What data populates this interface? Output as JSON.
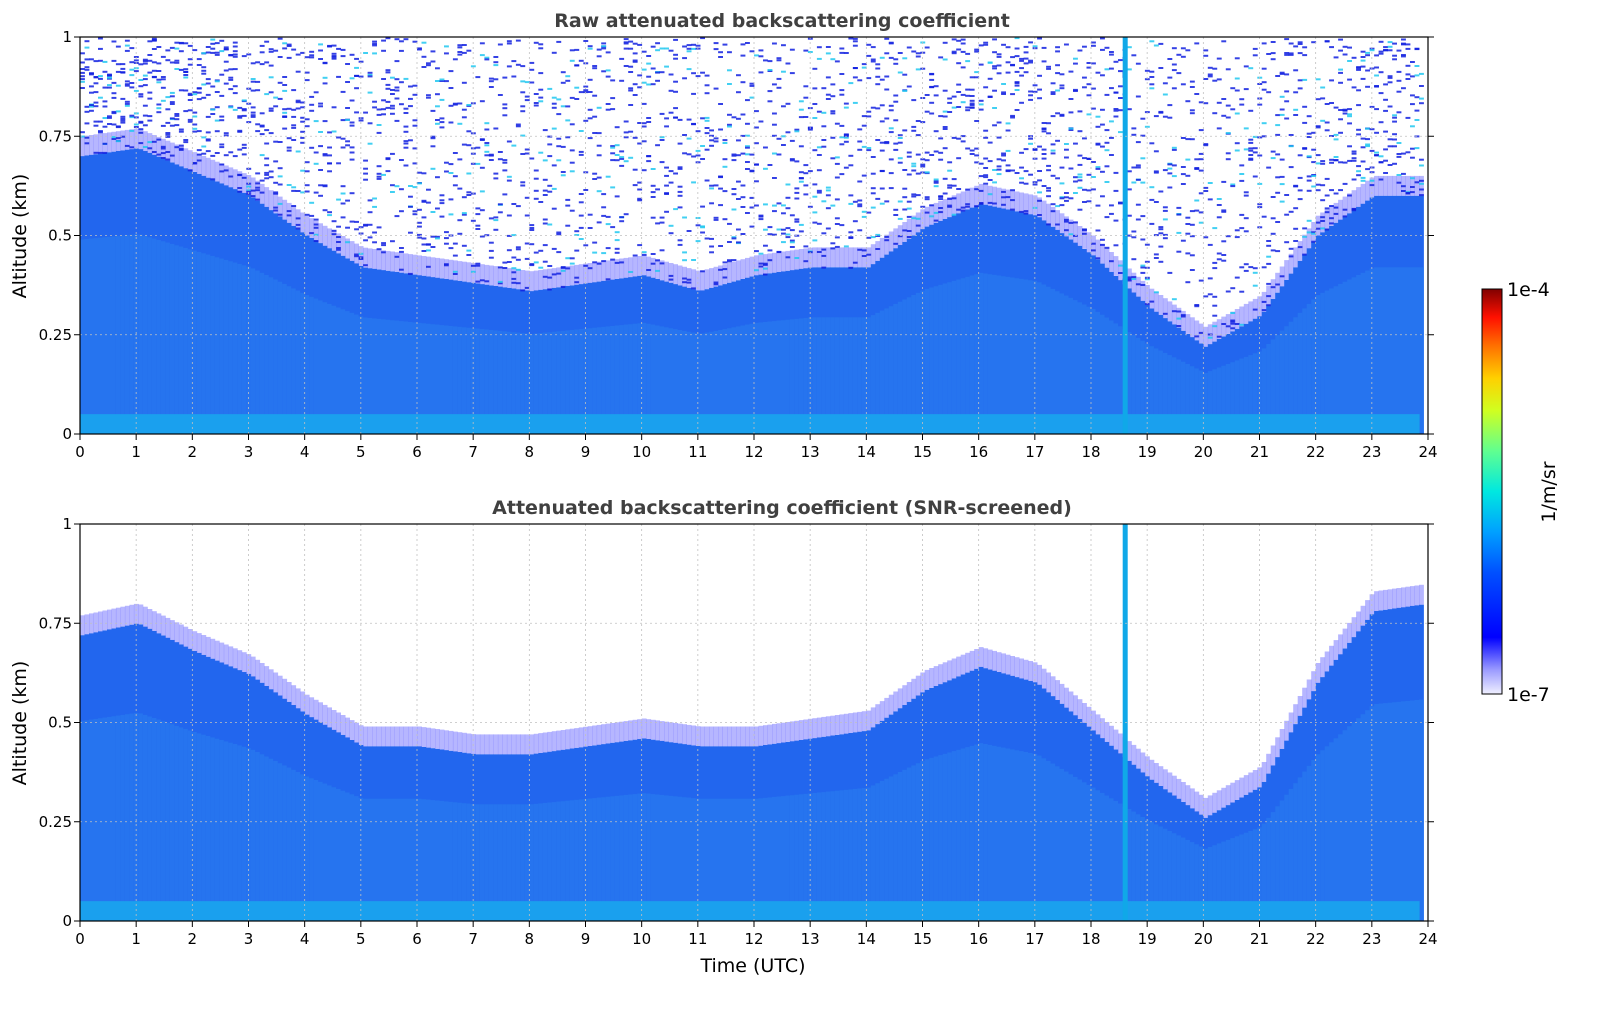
{
  "chart_data": [
    {
      "type": "heatmap",
      "title": "Raw attenuated backscattering coefficient",
      "xlabel": "",
      "ylabel": "Altitude (km)",
      "xlim": [
        0,
        24
      ],
      "ylim": [
        0,
        1
      ],
      "x_ticks": [
        "0",
        "1",
        "2",
        "3",
        "4",
        "5",
        "6",
        "7",
        "8",
        "9",
        "10",
        "11",
        "12",
        "13",
        "14",
        "15",
        "16",
        "17",
        "18",
        "19",
        "20",
        "21",
        "22",
        "23",
        "24"
      ],
      "y_ticks": [
        "0",
        "0.25",
        "0.5",
        "0.75",
        "1"
      ],
      "grid": true,
      "noise_above_boundary": true,
      "vertical_streak_time": 18.6,
      "boundary_layer_top_km": {
        "time": [
          0,
          1,
          2,
          3,
          4,
          5,
          6,
          7,
          8,
          9,
          10,
          11,
          12,
          13,
          14,
          15,
          16,
          17,
          18,
          19,
          20,
          21,
          22,
          23,
          24
        ],
        "height": [
          0.7,
          0.72,
          0.66,
          0.6,
          0.5,
          0.42,
          0.4,
          0.38,
          0.36,
          0.38,
          0.4,
          0.36,
          0.4,
          0.42,
          0.42,
          0.52,
          0.58,
          0.55,
          0.45,
          0.32,
          0.22,
          0.3,
          0.5,
          0.6,
          0.6
        ]
      }
    },
    {
      "type": "heatmap",
      "title": "Attenuated backscattering coefficient (SNR-screened)",
      "xlabel": "Time (UTC)",
      "ylabel": "Altitude (km)",
      "xlim": [
        0,
        24
      ],
      "ylim": [
        0,
        1
      ],
      "x_ticks": [
        "0",
        "1",
        "2",
        "3",
        "4",
        "5",
        "6",
        "7",
        "8",
        "9",
        "10",
        "11",
        "12",
        "13",
        "14",
        "15",
        "16",
        "17",
        "18",
        "19",
        "20",
        "21",
        "22",
        "23",
        "24"
      ],
      "y_ticks": [
        "0",
        "0.25",
        "0.5",
        "0.75",
        "1"
      ],
      "grid": true,
      "noise_above_boundary": false,
      "vertical_streak_time": 18.6,
      "boundary_layer_top_km": {
        "time": [
          0,
          1,
          2,
          3,
          4,
          5,
          6,
          7,
          8,
          9,
          10,
          11,
          12,
          13,
          14,
          15,
          16,
          17,
          18,
          19,
          20,
          21,
          22,
          23,
          24
        ],
        "height": [
          0.72,
          0.75,
          0.68,
          0.62,
          0.52,
          0.44,
          0.44,
          0.42,
          0.42,
          0.44,
          0.46,
          0.44,
          0.44,
          0.46,
          0.48,
          0.58,
          0.64,
          0.6,
          0.48,
          0.36,
          0.26,
          0.34,
          0.6,
          0.78,
          0.8
        ]
      }
    }
  ],
  "colorbar": {
    "label": "1/m/sr",
    "max_label": "1e-4",
    "min_label": "1e-7",
    "scale": "log",
    "colormap": "jet",
    "range": [
      1e-07,
      0.0001
    ]
  },
  "colors": {
    "low": "#e8e8ff",
    "background_layer": "#2266ee",
    "surface_layer": "#1aa0ee",
    "grid": "#c0c0c0",
    "title": "#404040"
  }
}
